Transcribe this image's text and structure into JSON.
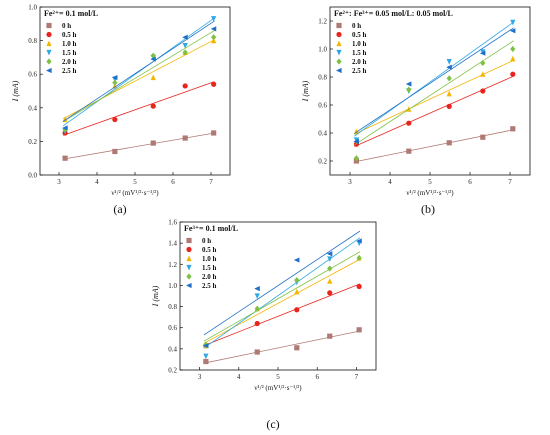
{
  "colors": {
    "0 h": "#b07a74",
    "0.5 h": "#e8241c",
    "1.0 h": "#f5b400",
    "1.5 h": "#2ea8e8",
    "2.0 h": "#7cc242",
    "2.5 h": "#1f6fc8"
  },
  "markers": {
    "0 h": "square",
    "0.5 h": "circle",
    "1.0 h": "triangle-up",
    "1.5 h": "triangle-down",
    "2.0 h": "diamond",
    "2.5 h": "triangle-left"
  },
  "chart_data": [
    {
      "type": "scatter",
      "panel_label": "(a)",
      "condition": "Fe²⁺= 0.1 mol/L",
      "xlabel": "ν¹/² (mV¹/²·s⁻¹/²)",
      "ylabel": "I (mA)",
      "xlim": [
        2.5,
        7.5
      ],
      "ylim": [
        0.0,
        1.0
      ],
      "xticks": [
        "3",
        "4",
        "5",
        "6",
        "7"
      ],
      "yticks": [
        "0.0",
        "0.2",
        "0.4",
        "0.6",
        "0.8",
        "1.0"
      ],
      "legend": [
        "0 h",
        "0.5 h",
        "1.0 h",
        "1.5 h",
        "2.0 h",
        "2.5 h"
      ],
      "x": [
        3.16,
        4.47,
        5.48,
        6.32,
        7.07
      ],
      "series": [
        {
          "name": "0 h",
          "values": [
            0.1,
            0.14,
            0.19,
            0.22,
            0.25
          ]
        },
        {
          "name": "0.5 h",
          "values": [
            0.25,
            0.33,
            0.41,
            0.53,
            0.54
          ]
        },
        {
          "name": "1.0 h",
          "values": [
            0.33,
            0.53,
            0.58,
            0.73,
            0.8
          ]
        },
        {
          "name": "1.5 h",
          "values": [
            0.26,
            0.57,
            0.7,
            0.77,
            0.93
          ]
        },
        {
          "name": "2.0 h",
          "values": [
            0.27,
            0.55,
            0.71,
            0.73,
            0.82
          ]
        },
        {
          "name": "2.5 h",
          "values": [
            0.28,
            0.58,
            0.69,
            0.82,
            0.87
          ]
        }
      ]
    },
    {
      "type": "scatter",
      "panel_label": "(b)",
      "condition": "Fe²⁺: Fe³⁺= 0.05 mol/L: 0.05 mol/L",
      "xlabel": "ν¹/² (mV¹/²·s⁻¹/²)",
      "ylabel": "I (mA)",
      "xlim": [
        2.5,
        7.5
      ],
      "ylim": [
        0.1,
        1.3
      ],
      "xticks": [
        "3",
        "4",
        "5",
        "6",
        "7"
      ],
      "yticks": [
        "0.2",
        "0.4",
        "0.6",
        "0.8",
        "1.0",
        "1.2"
      ],
      "legend": [
        "0 h",
        "0.5 h",
        "1.0 h",
        "1.5 h",
        "2.0 h",
        "2.5 h"
      ],
      "x": [
        3.16,
        4.47,
        5.48,
        6.32,
        7.07
      ],
      "series": [
        {
          "name": "0 h",
          "values": [
            0.2,
            0.27,
            0.33,
            0.37,
            0.43
          ]
        },
        {
          "name": "0.5 h",
          "values": [
            0.32,
            0.47,
            0.59,
            0.7,
            0.82
          ]
        },
        {
          "name": "1.0 h",
          "values": [
            0.41,
            0.57,
            0.68,
            0.82,
            0.93
          ]
        },
        {
          "name": "1.5 h",
          "values": [
            0.35,
            0.7,
            0.91,
            0.98,
            1.19
          ]
        },
        {
          "name": "2.0 h",
          "values": [
            0.22,
            0.71,
            0.79,
            0.9,
            1.0
          ]
        },
        {
          "name": "2.5 h",
          "values": [
            0.34,
            0.75,
            0.87,
            0.97,
            1.13
          ]
        }
      ]
    },
    {
      "type": "scatter",
      "panel_label": "(c)",
      "condition": "Fe³⁺= 0.1 mol/L",
      "xlabel": "ν¹/² (mV¹/²·s⁻¹/²)",
      "ylabel": "I (mA)",
      "xlim": [
        2.5,
        7.5
      ],
      "ylim": [
        0.2,
        1.6
      ],
      "xticks": [
        "3",
        "4",
        "5",
        "6",
        "7"
      ],
      "yticks": [
        "0.2",
        "0.4",
        "0.6",
        "0.8",
        "1.0",
        "1.2",
        "1.4",
        "1.6"
      ],
      "legend": [
        "0 h",
        "0.5 h",
        "1.0 h",
        "1.5 h",
        "2.0 h",
        "2.5 h"
      ],
      "x": [
        3.16,
        4.47,
        5.48,
        6.32,
        7.07
      ],
      "series": [
        {
          "name": "0 h",
          "values": [
            0.28,
            0.37,
            0.41,
            0.52,
            0.58
          ]
        },
        {
          "name": "0.5 h",
          "values": [
            0.43,
            0.64,
            0.77,
            0.93,
            0.99
          ]
        },
        {
          "name": "1.0 h",
          "values": [
            0.43,
            0.78,
            0.94,
            1.04,
            1.26
          ]
        },
        {
          "name": "1.5 h",
          "values": [
            0.33,
            0.9,
            1.03,
            1.25,
            1.4
          ]
        },
        {
          "name": "2.0 h",
          "values": [
            0.44,
            0.78,
            1.05,
            1.16,
            1.26
          ]
        },
        {
          "name": "2.5 h",
          "values": [
            0.43,
            0.97,
            1.24,
            1.3,
            1.42
          ]
        }
      ]
    }
  ]
}
